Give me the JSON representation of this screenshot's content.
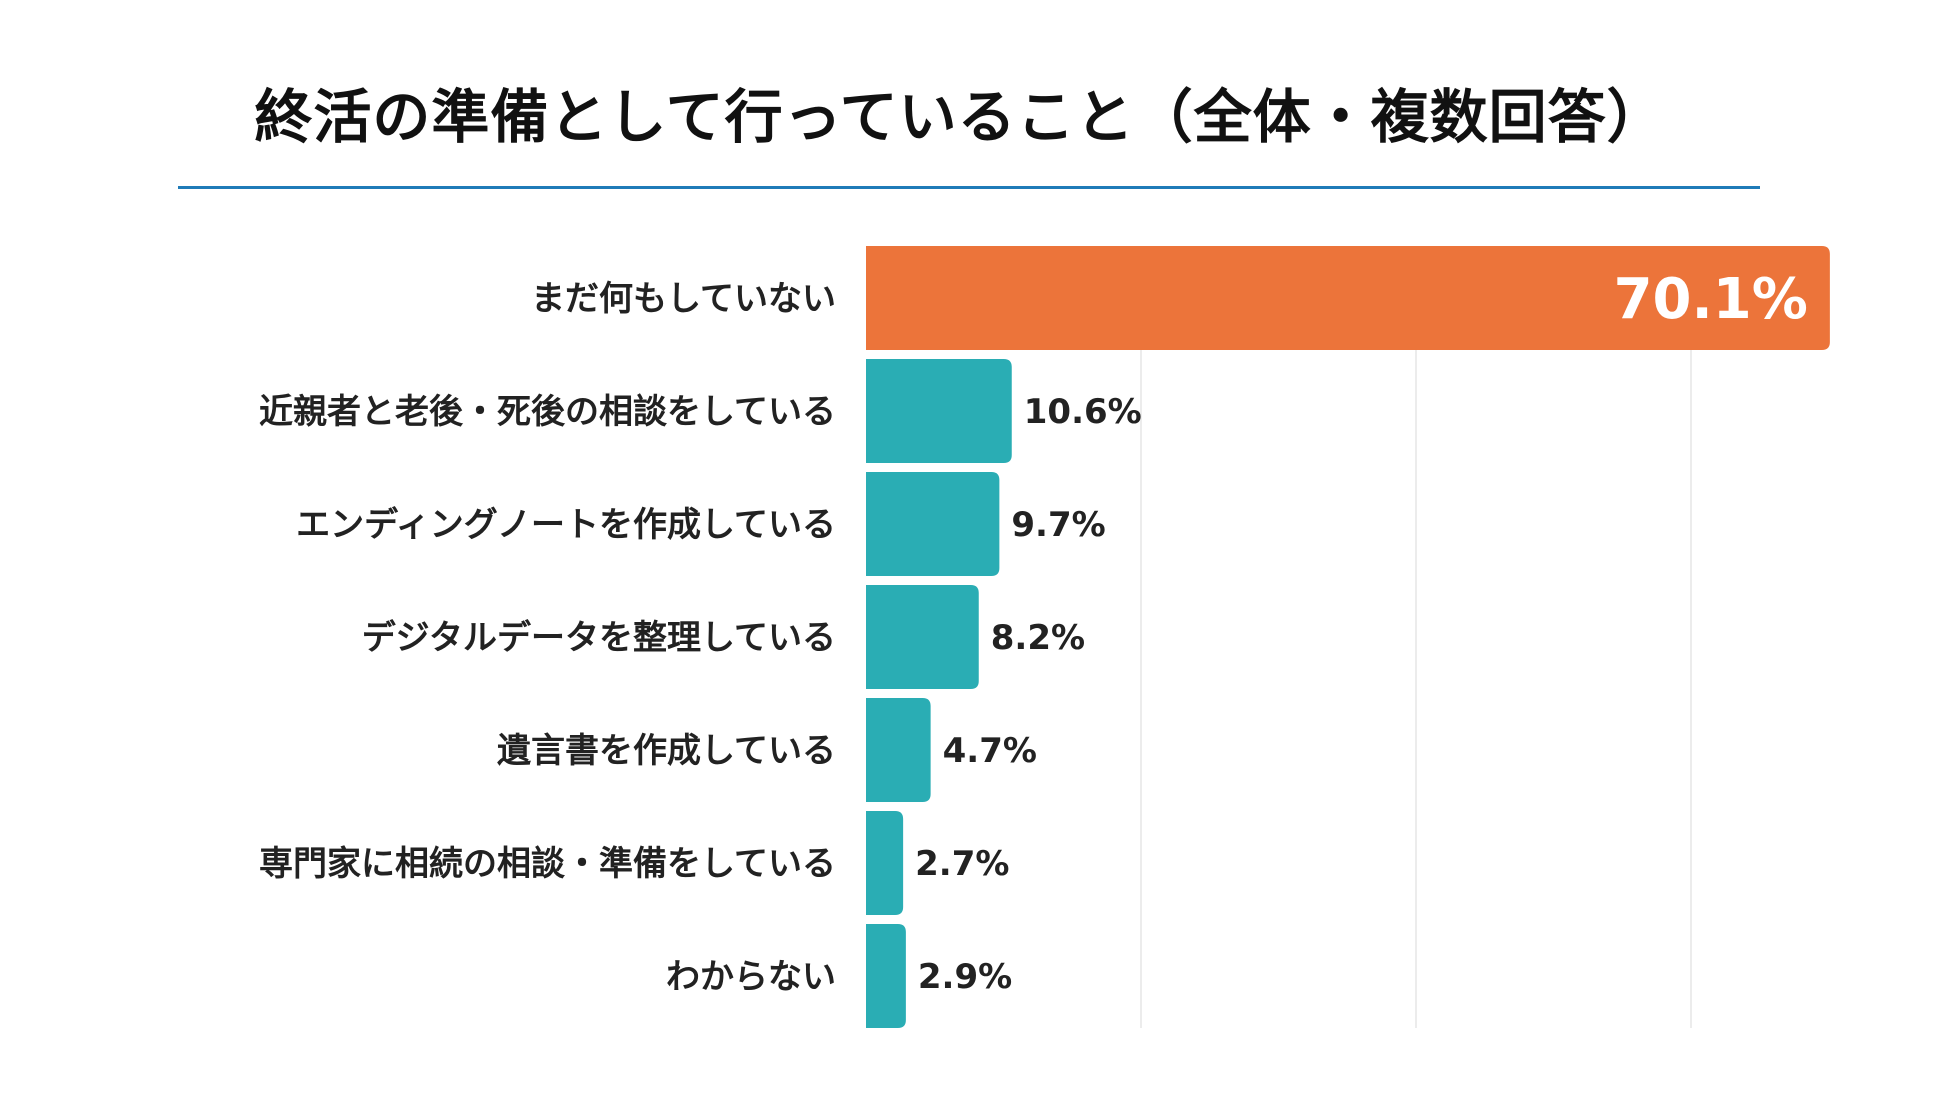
{
  "chart_data": {
    "type": "bar",
    "orientation": "horizontal",
    "title": "終活の準備として行っていること（全体・複数回答）",
    "categories": [
      "まだ何もしていない",
      "近親者と老後・死後の相談をしている",
      "エンディングノートを作成している",
      "デジタルデータを整理している",
      "遺言書を作成している",
      "専門家に相続の相談・準備をしている",
      "わからない"
    ],
    "values": [
      70.1,
      10.6,
      9.7,
      8.2,
      4.7,
      2.7,
      2.9
    ],
    "value_labels": [
      "70.1%",
      "10.6%",
      "9.7%",
      "8.2%",
      "4.7%",
      "2.7%",
      "2.9%"
    ],
    "unit": "%",
    "xlim": [
      0,
      80
    ],
    "grid": true,
    "colors": {
      "highlight": "#ec743a",
      "default": "#2aadb4",
      "title_rule": "#1f7bb8",
      "grid": "#e6e6e6"
    },
    "highlight_index": 0,
    "xlabel": "",
    "ylabel": ""
  }
}
